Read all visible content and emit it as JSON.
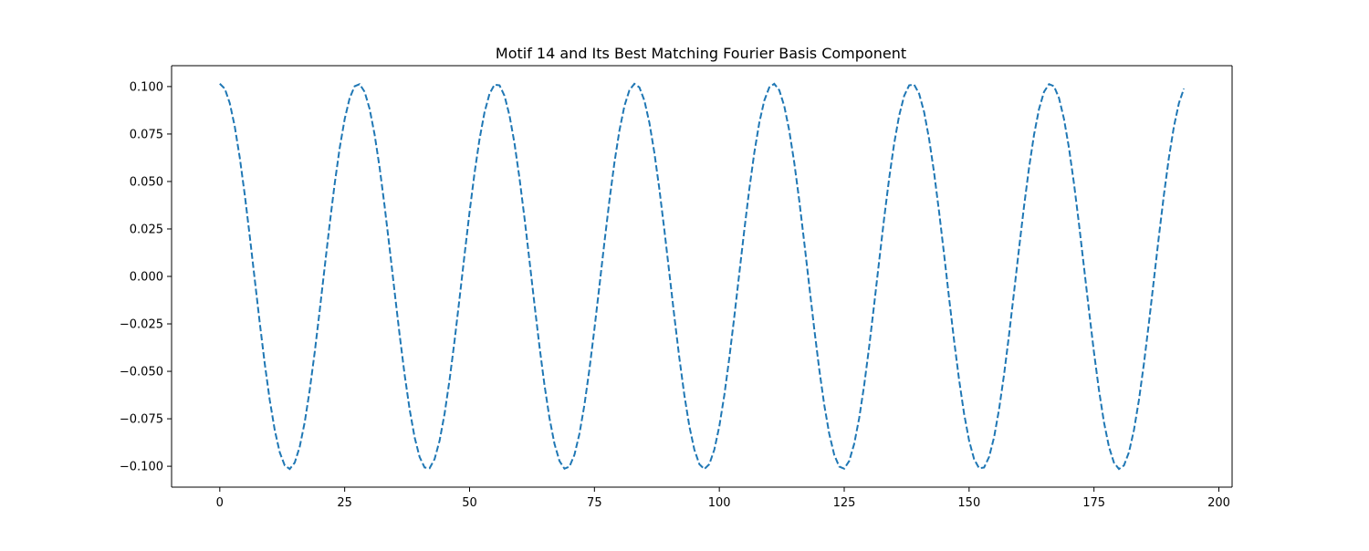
{
  "chart_data": {
    "type": "line",
    "title": "Motif 14 and Its Best Matching Fourier Basis Component",
    "xlabel": "",
    "ylabel": "",
    "xlim": [
      -9.65,
      202.65
    ],
    "ylim": [
      -0.111,
      0.111
    ],
    "xticks": [
      0,
      25,
      50,
      75,
      100,
      125,
      150,
      175,
      200
    ],
    "xtick_labels": [
      "0",
      "25",
      "50",
      "75",
      "100",
      "125",
      "150",
      "175",
      "200"
    ],
    "yticks": [
      -0.1,
      -0.075,
      -0.05,
      -0.025,
      0.0,
      0.025,
      0.05,
      0.075,
      0.1
    ],
    "ytick_labels": [
      "−0.100",
      "−0.075",
      "−0.050",
      "−0.025",
      "0.000",
      "0.025",
      "0.050",
      "0.075",
      "0.100"
    ],
    "grid": false,
    "legend": "none",
    "series": [
      {
        "color": "#1f77b4",
        "line_style": "dashed",
        "x_start": 0,
        "x_end": 193,
        "x_step": 1,
        "function": "0.1015 * cos(2 * pi * 7 * x / 194)",
        "y_sample": {
          "x": [
            0,
            14,
            28,
            42,
            55,
            69,
            83,
            97,
            111,
            125,
            139,
            152,
            166,
            180,
            193
          ],
          "y": [
            0.1015,
            -0.1014,
            0.1011,
            -0.1006,
            0.1013,
            -0.1015,
            0.1015,
            -0.1015,
            0.1015,
            -0.1015,
            0.1013,
            -0.1006,
            0.1011,
            -0.1014,
            0.098
          ]
        }
      }
    ]
  }
}
